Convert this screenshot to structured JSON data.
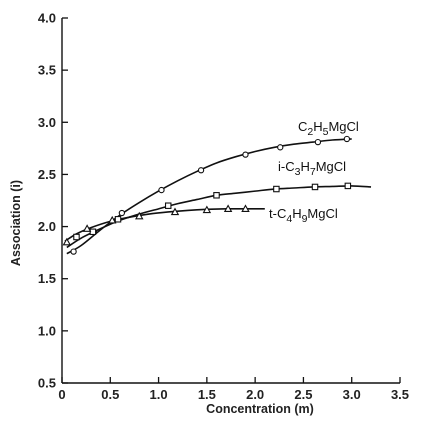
{
  "chart_data": {
    "type": "line",
    "title": "",
    "xlabel": "Concentration (m)",
    "ylabel": "Association (i)",
    "xlim": [
      0,
      3.5
    ],
    "ylim": [
      0.5,
      4.0
    ],
    "xticks": [
      "0",
      "0.5",
      "1.0",
      "1.5",
      "2.0",
      "2.5",
      "3.0",
      "3.5"
    ],
    "yticks": [
      "0.5",
      "1.0",
      "1.5",
      "2.0",
      "2.5",
      "3.0",
      "3.5",
      "4.0"
    ],
    "grid": false,
    "legend": "inline labels near curve ends",
    "series": [
      {
        "key": "ethyl",
        "label_parts": [
          [
            "C",
            ""
          ],
          [
            "2",
            "sub"
          ],
          [
            "H",
            ""
          ],
          [
            "5",
            "sub"
          ],
          [
            "MgCl",
            ""
          ]
        ],
        "marker": "circle",
        "points": [
          [
            0.12,
            1.76
          ],
          [
            0.33,
            1.95
          ],
          [
            0.62,
            2.13
          ],
          [
            1.03,
            2.35
          ],
          [
            1.44,
            2.54
          ],
          [
            1.9,
            2.69
          ],
          [
            2.26,
            2.76
          ],
          [
            2.65,
            2.81
          ],
          [
            2.95,
            2.84
          ]
        ],
        "curve": [
          [
            0.05,
            1.74
          ],
          [
            0.2,
            1.82
          ],
          [
            0.4,
            1.97
          ],
          [
            0.6,
            2.11
          ],
          [
            0.8,
            2.23
          ],
          [
            1.0,
            2.34
          ],
          [
            1.2,
            2.44
          ],
          [
            1.4,
            2.53
          ],
          [
            1.6,
            2.61
          ],
          [
            1.8,
            2.67
          ],
          [
            2.0,
            2.72
          ],
          [
            2.2,
            2.76
          ],
          [
            2.4,
            2.79
          ],
          [
            2.6,
            2.81
          ],
          [
            2.8,
            2.83
          ],
          [
            3.0,
            2.84
          ]
        ]
      },
      {
        "key": "isopropyl",
        "label_parts": [
          [
            "i-C",
            ""
          ],
          [
            "3",
            "sub"
          ],
          [
            "H",
            ""
          ],
          [
            "7",
            "sub"
          ],
          [
            "MgCl",
            ""
          ]
        ],
        "marker": "square",
        "points": [
          [
            0.15,
            1.9
          ],
          [
            0.32,
            1.95
          ],
          [
            0.58,
            2.07
          ],
          [
            1.1,
            2.2
          ],
          [
            1.6,
            2.3
          ],
          [
            2.22,
            2.36
          ],
          [
            2.62,
            2.38
          ],
          [
            2.96,
            2.39
          ]
        ],
        "curve": [
          [
            0.05,
            1.8
          ],
          [
            0.2,
            1.89
          ],
          [
            0.4,
            1.98
          ],
          [
            0.6,
            2.06
          ],
          [
            0.8,
            2.12
          ],
          [
            1.0,
            2.17
          ],
          [
            1.2,
            2.22
          ],
          [
            1.4,
            2.26
          ],
          [
            1.6,
            2.3
          ],
          [
            1.8,
            2.32
          ],
          [
            2.0,
            2.34
          ],
          [
            2.2,
            2.36
          ],
          [
            2.4,
            2.37
          ],
          [
            2.6,
            2.38
          ],
          [
            2.8,
            2.385
          ],
          [
            3.0,
            2.39
          ],
          [
            3.2,
            2.38
          ]
        ]
      },
      {
        "key": "tertbutyl",
        "label_parts": [
          [
            "t-C",
            ""
          ],
          [
            "4",
            "sub"
          ],
          [
            "H",
            ""
          ],
          [
            "9",
            "sub"
          ],
          [
            "MgCl",
            ""
          ]
        ],
        "marker": "triangle",
        "points": [
          [
            0.05,
            1.85
          ],
          [
            0.26,
            1.98
          ],
          [
            0.52,
            2.06
          ],
          [
            0.8,
            2.1
          ],
          [
            1.17,
            2.14
          ],
          [
            1.5,
            2.16
          ],
          [
            1.72,
            2.17
          ],
          [
            1.9,
            2.17
          ]
        ],
        "curve": [
          [
            0.03,
            1.86
          ],
          [
            0.15,
            1.93
          ],
          [
            0.3,
            1.99
          ],
          [
            0.5,
            2.05
          ],
          [
            0.7,
            2.09
          ],
          [
            0.9,
            2.12
          ],
          [
            1.1,
            2.14
          ],
          [
            1.3,
            2.155
          ],
          [
            1.5,
            2.165
          ],
          [
            1.7,
            2.17
          ],
          [
            1.9,
            2.17
          ],
          [
            2.1,
            2.17
          ]
        ]
      }
    ]
  }
}
